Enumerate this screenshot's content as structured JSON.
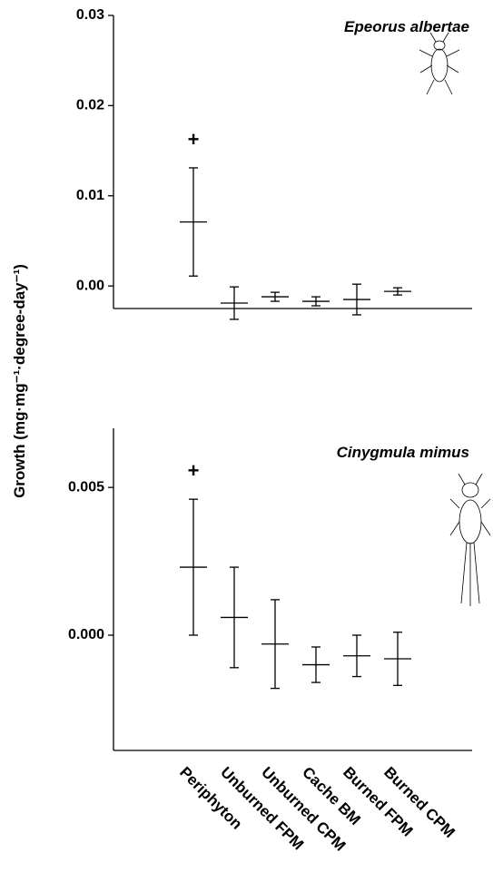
{
  "y_label": "Growth (mg·mg⁻¹·degree-day⁻¹)",
  "chart_data": [
    {
      "type": "errorbar",
      "title": "Epeorus albertae",
      "values": [
        0.0071,
        -0.0019,
        -0.0012,
        -0.0017,
        -0.0015,
        -0.0006
      ],
      "errors": [
        0.006,
        0.0018,
        0.0005,
        0.0005,
        0.0017,
        0.0004
      ],
      "annotation": "+",
      "ylim": [
        -0.0025,
        0.03
      ],
      "yticks": [
        {
          "value": 0,
          "label": "0.00"
        },
        0.01,
        0.02,
        0.03
      ]
    },
    {
      "type": "errorbar",
      "title": "Cinygmula mimus",
      "categories": [
        "Periphyton",
        "Unburned FPM",
        "Unburned CPM",
        "Cache BM",
        "Burned FPM",
        "Burned CPM"
      ],
      "values": [
        0.0023,
        0.0006,
        -0.0003,
        -0.001,
        -0.0007,
        -0.0008
      ],
      "errors": [
        0.0023,
        0.0017,
        0.0015,
        0.0006,
        0.0007,
        0.0009
      ],
      "annotation": "+",
      "ylim": [
        -0.0039,
        0.007
      ],
      "yticks": [
        {
          "value": 0,
          "label": "0.000"
        },
        0.005
      ]
    }
  ]
}
